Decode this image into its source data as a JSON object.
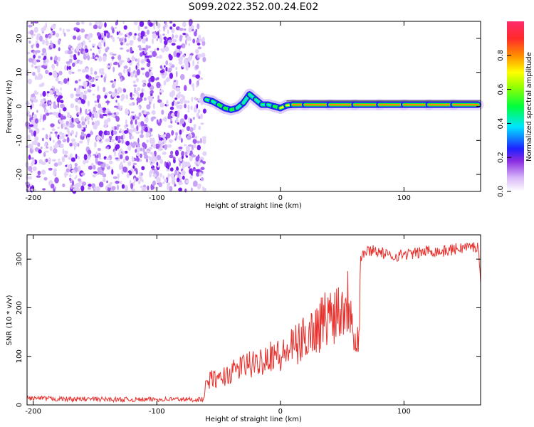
{
  "title": "S099.2022.352.00.24.E02",
  "chart_data": [
    {
      "type": "heatmap",
      "xlabel": "Height of straight line (km)",
      "ylabel": "Frequency (Hz)",
      "xlim": [
        -205,
        162
      ],
      "ylim": [
        -25,
        25
      ],
      "xticks": [
        -200,
        -100,
        0,
        100
      ],
      "yticks": [
        -20,
        -10,
        0,
        10,
        20
      ],
      "noise_region_x": [
        -205,
        -60
      ],
      "signal_trace": {
        "x": [
          -60,
          -55,
          -50,
          -45,
          -40,
          -35,
          -30,
          -25,
          -20,
          -15,
          -10,
          -5,
          0,
          5,
          10,
          20,
          40,
          60,
          80,
          100,
          120,
          140,
          160
        ],
        "freq": [
          2,
          1.5,
          0.5,
          -0.5,
          -1,
          -0.5,
          1,
          3.5,
          2,
          0.5,
          0.5,
          0,
          -0.5,
          0.3,
          0.5,
          0.5,
          0.5,
          0.5,
          0.5,
          0.5,
          0.5,
          0.5,
          0.5
        ],
        "amplitude": [
          0.45,
          0.5,
          0.55,
          0.6,
          0.65,
          0.55,
          0.5,
          0.45,
          0.5,
          0.55,
          0.45,
          0.55,
          0.7,
          0.7,
          0.85,
          0.75,
          0.9,
          0.85,
          0.9,
          0.75,
          0.85,
          0.75,
          0.85
        ]
      },
      "colorbar": {
        "label": "Normalized spectral amplitude",
        "range": [
          0,
          1
        ],
        "ticks": [
          "0.0",
          "0.2",
          "0.4",
          "0.6",
          "0.8"
        ]
      }
    },
    {
      "type": "line",
      "xlabel": "Height of straight line (km)",
      "ylabel": "SNR (10 * v/v)",
      "xlim": [
        -205,
        162
      ],
      "ylim": [
        0,
        350
      ],
      "xticks": [
        -200,
        -100,
        0,
        100
      ],
      "yticks": [
        0,
        100,
        200,
        300
      ],
      "series": [
        {
          "color": "#e8302c",
          "x": [
            -205,
            -190,
            -170,
            -150,
            -130,
            -110,
            -90,
            -70,
            -62,
            -60,
            -55,
            -50,
            -45,
            -40,
            -35,
            -30,
            -25,
            -20,
            -15,
            -10,
            -5,
            0,
            5,
            10,
            15,
            20,
            25,
            30,
            35,
            40,
            45,
            50,
            55,
            58,
            60,
            62,
            64,
            65,
            66,
            70,
            75,
            80,
            90,
            100,
            110,
            120,
            130,
            140,
            150,
            160,
            162
          ],
          "y": [
            14,
            13,
            12,
            12,
            11,
            11,
            12,
            11,
            12,
            45,
            55,
            50,
            60,
            65,
            75,
            80,
            85,
            80,
            95,
            100,
            110,
            95,
            110,
            120,
            125,
            140,
            150,
            160,
            175,
            185,
            195,
            205,
            215,
            205,
            140,
            140,
            150,
            300,
            310,
            315,
            320,
            315,
            305,
            310,
            312,
            318,
            315,
            320,
            325,
            325,
            250
          ]
        }
      ]
    }
  ]
}
